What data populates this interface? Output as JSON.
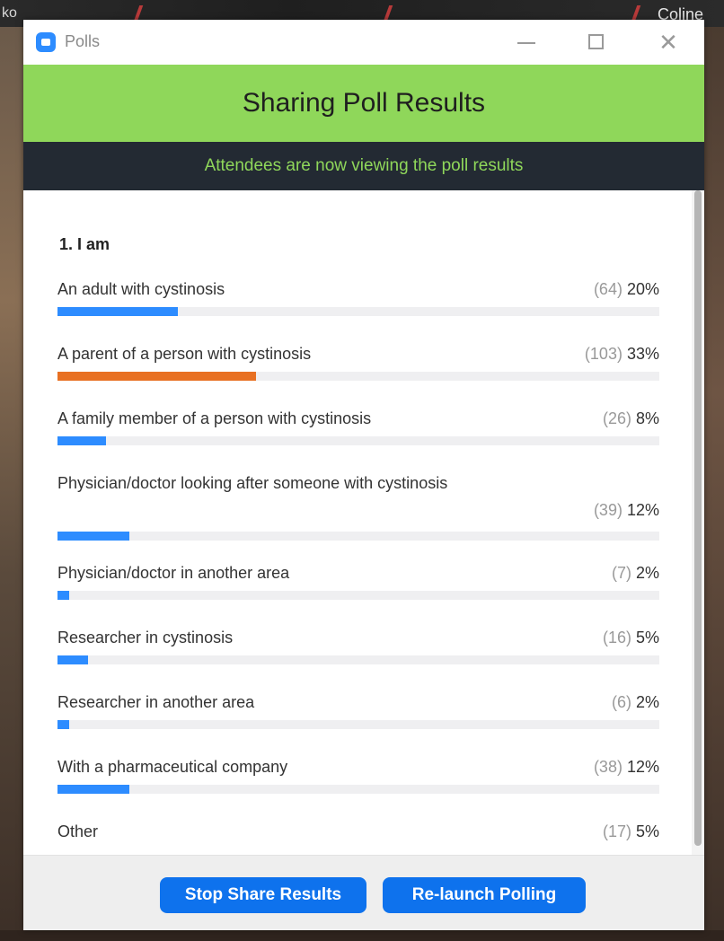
{
  "background": {
    "left_name": "ko",
    "right_name": "Coline"
  },
  "window": {
    "title": "Polls",
    "minimize_icon": "minimize-icon",
    "maximize_icon": "maximize-icon",
    "close_icon": "close-icon",
    "close_glyph": "✕"
  },
  "banner": {
    "title": "Sharing Poll Results",
    "subtitle": "Attendees are now viewing the poll results"
  },
  "poll": {
    "question": "1. I am",
    "answers": [
      {
        "label": "An adult with cystinosis",
        "count": "(64)",
        "percent": "20%",
        "value": 20,
        "highlight": false
      },
      {
        "label": "A parent of a person with cystinosis",
        "count": "(103)",
        "percent": "33%",
        "value": 33,
        "highlight": true
      },
      {
        "label": "A family member of a person with cystinosis",
        "count": "(26)",
        "percent": "8%",
        "value": 8,
        "highlight": false
      },
      {
        "label": "Physician/doctor looking after someone with cystinosis",
        "count": "(39)",
        "percent": "12%",
        "value": 12,
        "highlight": false
      },
      {
        "label": "Physician/doctor in another area",
        "count": "(7)",
        "percent": "2%",
        "value": 2,
        "highlight": false
      },
      {
        "label": "Researcher in cystinosis",
        "count": "(16)",
        "percent": "5%",
        "value": 5,
        "highlight": false
      },
      {
        "label": "Researcher in another area",
        "count": "(6)",
        "percent": "2%",
        "value": 2,
        "highlight": false
      },
      {
        "label": "With a pharmaceutical company",
        "count": "(38)",
        "percent": "12%",
        "value": 12,
        "highlight": false
      },
      {
        "label": "Other",
        "count": "(17)",
        "percent": "5%",
        "value": 5,
        "highlight": false
      }
    ]
  },
  "footer": {
    "stop_label": "Stop Share Results",
    "relaunch_label": "Re-launch Polling"
  },
  "colors": {
    "banner": "#8fd75a",
    "subbanner": "#232a33",
    "bar": "#2d8cff",
    "bar_highlight": "#e87022",
    "button": "#0e72ed"
  }
}
